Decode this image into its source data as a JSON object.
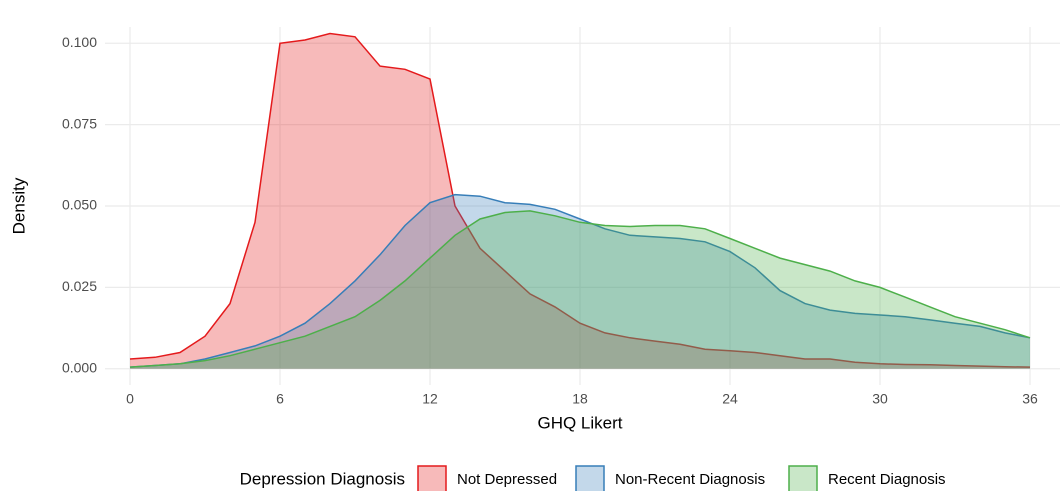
{
  "chart_data": {
    "type": "area",
    "x_label": "GHQ Likert",
    "y_label": "Density",
    "legend_title": "Depression Diagnosis",
    "legend_position": "bottom",
    "x": [
      0,
      1,
      2,
      3,
      4,
      5,
      6,
      7,
      8,
      9,
      10,
      11,
      12,
      13,
      14,
      15,
      16,
      17,
      18,
      19,
      20,
      21,
      22,
      23,
      24,
      25,
      26,
      27,
      28,
      29,
      30,
      31,
      32,
      33,
      34,
      35,
      36
    ],
    "series": [
      {
        "name": "Not Depressed",
        "color": "#e41a1c",
        "values": [
          0.003,
          0.0035,
          0.005,
          0.01,
          0.02,
          0.045,
          0.1,
          0.101,
          0.103,
          0.102,
          0.093,
          0.092,
          0.089,
          0.05,
          0.037,
          0.03,
          0.023,
          0.019,
          0.014,
          0.011,
          0.0095,
          0.0085,
          0.0075,
          0.006,
          0.0055,
          0.005,
          0.004,
          0.003,
          0.003,
          0.002,
          0.0015,
          0.0013,
          0.0012,
          0.001,
          0.0008,
          0.0006,
          0.0005
        ]
      },
      {
        "name": "Non-Recent Diagnosis",
        "color": "#377eb8",
        "values": [
          0.0005,
          0.001,
          0.0015,
          0.003,
          0.005,
          0.007,
          0.01,
          0.014,
          0.02,
          0.027,
          0.035,
          0.044,
          0.051,
          0.0535,
          0.053,
          0.051,
          0.0505,
          0.049,
          0.046,
          0.043,
          0.041,
          0.0405,
          0.04,
          0.039,
          0.036,
          0.031,
          0.024,
          0.02,
          0.018,
          0.017,
          0.0165,
          0.016,
          0.015,
          0.014,
          0.013,
          0.011,
          0.0095
        ]
      },
      {
        "name": "Recent Diagnosis",
        "color": "#4daf4a",
        "values": [
          0.0005,
          0.001,
          0.0015,
          0.0025,
          0.004,
          0.006,
          0.008,
          0.01,
          0.013,
          0.016,
          0.021,
          0.027,
          0.034,
          0.041,
          0.046,
          0.048,
          0.0485,
          0.047,
          0.045,
          0.044,
          0.0437,
          0.044,
          0.044,
          0.043,
          0.04,
          0.037,
          0.034,
          0.032,
          0.03,
          0.027,
          0.025,
          0.022,
          0.019,
          0.016,
          0.014,
          0.012,
          0.0095
        ]
      }
    ],
    "fill_opacity": 0.3,
    "xlim": [
      -1,
      37.2
    ],
    "xticks": [
      0,
      6,
      12,
      18,
      24,
      30,
      36
    ],
    "ylim": [
      -0.005,
      0.105
    ],
    "yticks": [
      {
        "value": 0,
        "label": "0.000"
      },
      {
        "value": 0.025,
        "label": "0.025"
      },
      {
        "value": 0.05,
        "label": "0.050"
      },
      {
        "value": 0.075,
        "label": "0.075"
      },
      {
        "value": 0.1,
        "label": "0.100"
      }
    ],
    "grid": true
  }
}
